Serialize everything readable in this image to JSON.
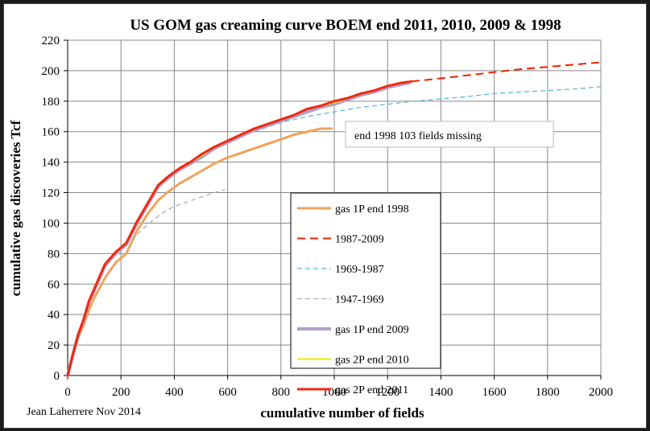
{
  "chart_data": {
    "type": "line",
    "title": "US GOM gas creaming curve BOEM end 2011, 2010, 2009 & 1998",
    "xlabel": "cumulative number of fields",
    "ylabel": "cumulative gas discoveries Tcf",
    "xlim": [
      0,
      2000
    ],
    "ylim": [
      0,
      220
    ],
    "x_ticks": [
      "0",
      "200",
      "400",
      "600",
      "800",
      "1000",
      "1200",
      "1400",
      "1600",
      "1800",
      "2000"
    ],
    "y_ticks": [
      "0",
      "20",
      "40",
      "60",
      "80",
      "100",
      "120",
      "140",
      "160",
      "180",
      "200",
      "220"
    ],
    "grid": true,
    "legend_position": "center",
    "credit": "Jean Laherrere Nov 2014",
    "annotation": "end 1998 103 fields missing",
    "series": [
      {
        "name": "gas 1P end 1998",
        "color": "#f0a35a",
        "style": "solid",
        "width": 3,
        "x": [
          0,
          20,
          40,
          60,
          80,
          100,
          140,
          180,
          220,
          260,
          300,
          340,
          380,
          420,
          460,
          500,
          550,
          600,
          650,
          700,
          750,
          800,
          850,
          900,
          950,
          990
        ],
        "y": [
          0,
          13,
          25,
          33,
          43,
          51,
          64,
          74,
          80,
          95,
          106,
          115,
          121,
          126,
          130,
          134,
          139,
          143,
          146,
          149,
          152,
          155,
          158,
          160,
          162,
          162
        ]
      },
      {
        "name": "1987-2009",
        "color": "#ee2200",
        "style": "dashed",
        "width": 2,
        "x": [
          1290,
          1350,
          1400,
          1500,
          1600,
          1700,
          1800,
          1900,
          2000
        ],
        "y": [
          193,
          194,
          195,
          197,
          199,
          201,
          202.5,
          204,
          205.5
        ]
      },
      {
        "name": "1969-1987",
        "color": "#4fb7d6",
        "style": "dashed",
        "width": 1.2,
        "x": [
          700,
          800,
          900,
          1000,
          1100,
          1200,
          1300,
          1400,
          1500,
          1600,
          1700,
          1800,
          1900,
          2000
        ],
        "y": [
          160,
          166,
          170,
          173,
          176,
          178,
          180,
          181.5,
          183,
          185,
          186,
          187,
          188,
          189.5
        ]
      },
      {
        "name": "1947-1969",
        "color": "#aaaaaa",
        "style": "dashed",
        "width": 1.2,
        "x": [
          240,
          300,
          350,
          400,
          450,
          500,
          550,
          590
        ],
        "y": [
          89,
          99,
          106,
          111,
          114,
          117,
          120,
          122
        ]
      },
      {
        "name": "gas 1P end 2009",
        "color": "#b0a0c8",
        "style": "solid",
        "width": 4,
        "x": [
          0,
          20,
          40,
          60,
          80,
          100,
          140,
          180,
          220,
          260,
          300,
          340,
          380,
          420,
          460,
          500,
          550,
          600,
          650,
          700,
          750,
          800,
          850,
          900,
          950,
          1000,
          1050,
          1100,
          1150,
          1200,
          1250,
          1280
        ],
        "y": [
          0,
          14,
          27,
          36,
          48,
          56,
          72,
          80,
          86,
          100,
          112,
          124,
          130,
          135,
          139,
          143,
          149,
          153,
          157,
          161,
          164,
          167,
          170,
          173,
          176,
          178,
          181,
          184,
          186,
          189,
          191,
          192
        ]
      },
      {
        "name": "gas 2P end 2010",
        "color": "#f5e600",
        "style": "solid",
        "width": 2,
        "x": [
          0,
          20,
          40,
          60,
          80,
          100,
          140,
          180,
          220,
          260,
          300,
          340,
          380,
          420,
          460,
          500,
          550,
          600,
          650,
          700,
          750,
          800,
          850,
          900,
          950,
          1000,
          1050,
          1100,
          1150,
          1200,
          1250,
          1290
        ],
        "y": [
          0,
          14,
          27,
          37,
          49,
          57,
          73,
          81,
          87,
          101,
          113,
          125,
          131,
          136,
          140,
          144,
          150,
          154,
          158,
          162,
          165,
          168,
          171,
          175,
          177,
          179,
          182,
          185,
          187,
          190,
          192,
          193
        ]
      },
      {
        "name": "gas 2P end 2011",
        "color": "#ee2a10",
        "style": "solid",
        "width": 3,
        "x": [
          0,
          20,
          40,
          60,
          80,
          100,
          140,
          180,
          220,
          260,
          300,
          340,
          380,
          420,
          460,
          500,
          550,
          600,
          650,
          700,
          750,
          800,
          850,
          900,
          950,
          1000,
          1050,
          1100,
          1150,
          1200,
          1250,
          1290
        ],
        "y": [
          0,
          14,
          27,
          37,
          49,
          57,
          73,
          81,
          87,
          101,
          113,
          125,
          131,
          136,
          140,
          145,
          150,
          154,
          158,
          162,
          165,
          168,
          171,
          175,
          177,
          180,
          182,
          185,
          187,
          190,
          192,
          193
        ]
      }
    ]
  }
}
